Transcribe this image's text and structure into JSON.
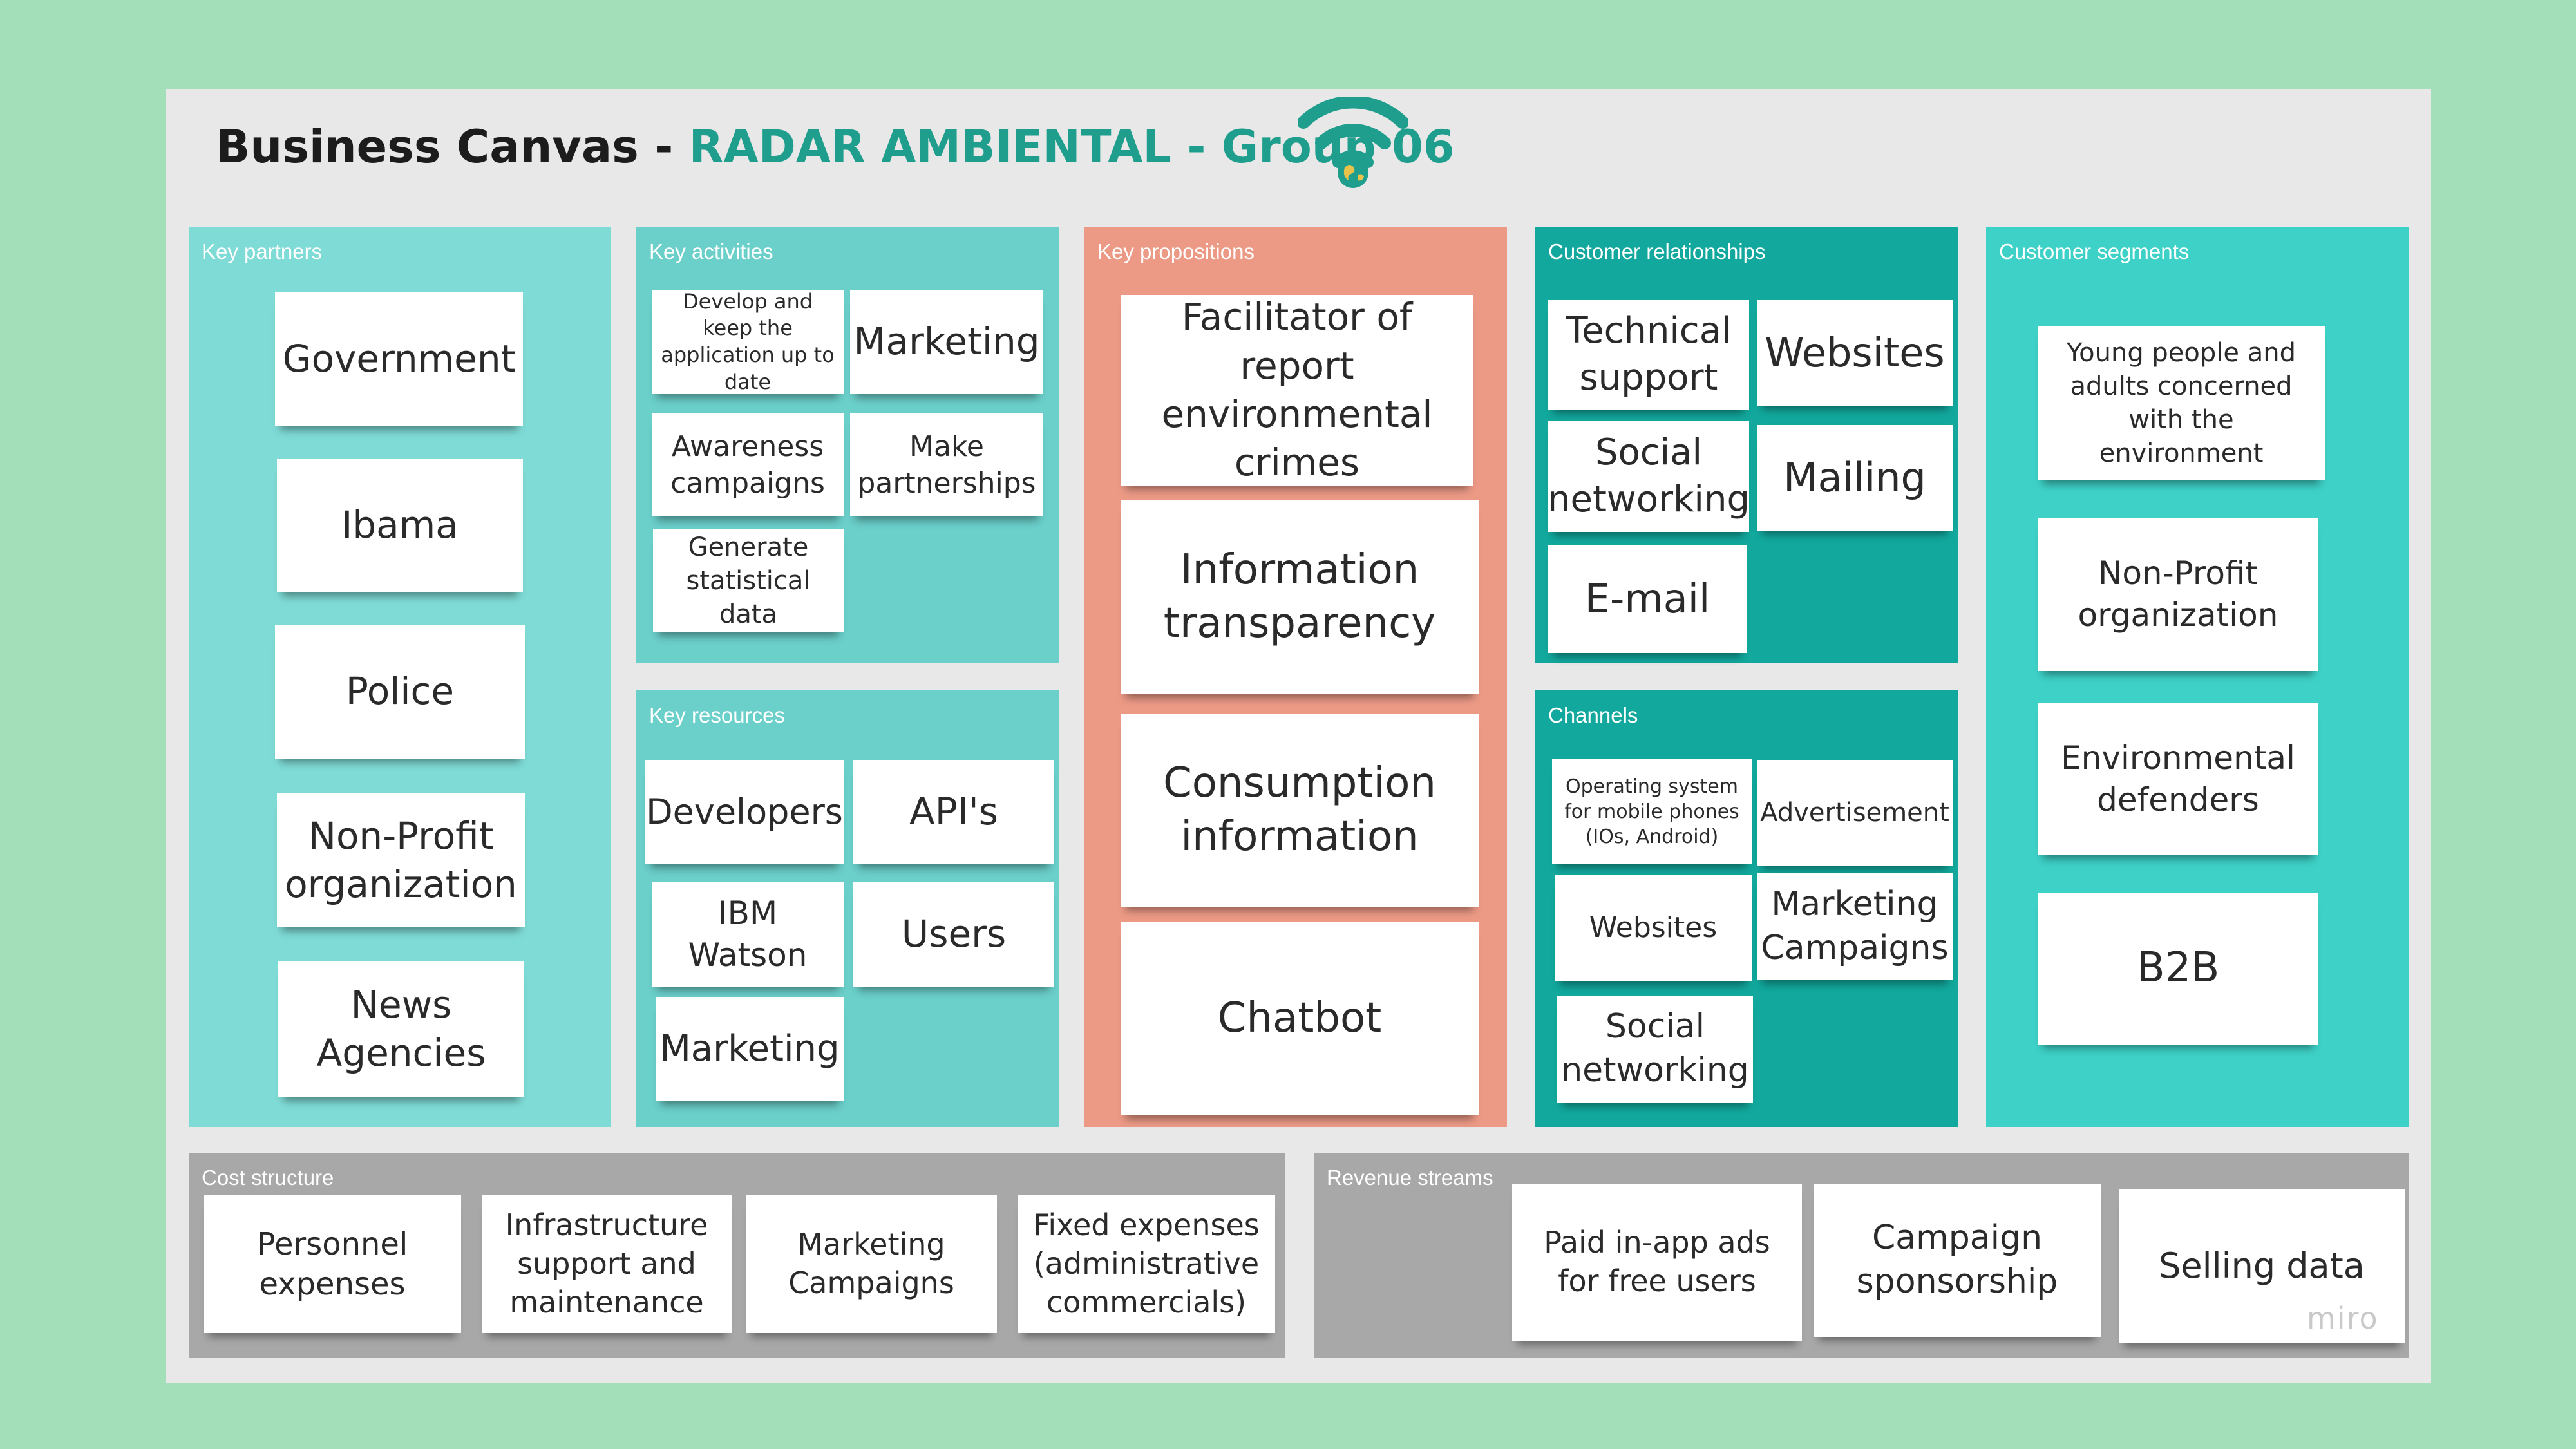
{
  "title": {
    "prefix": "Business Canvas - ",
    "accent": "RADAR AMBIENTAL - Group 06"
  },
  "logo_icon": "wifi-globe-icon",
  "colors": {
    "background": "#a3e0ba",
    "board": "#e8e8e8",
    "key_partners": "#7fdbd6",
    "key_activities": "#6bcfca",
    "key_resources": "#6bcfca",
    "key_propositions": "#ec9a86",
    "customer_relationships": "#12a89d",
    "channels": "#12a89d",
    "customer_segments": "#3ed1c7",
    "cost_structure": "#a8a8a8",
    "revenue_streams": "#a8a8a8",
    "title_accent": "#1f9e8d"
  },
  "panels": {
    "key_partners": {
      "label": "Key partners",
      "notes": [
        "Government",
        "Ibama",
        "Police",
        "Non-Profit organization",
        "News Agencies"
      ]
    },
    "key_activities": {
      "label": "Key activities",
      "notes": [
        "Develop and keep the application up to date",
        "Marketing",
        "Awareness campaigns",
        "Make partnerships",
        "Generate statistical data"
      ]
    },
    "key_resources": {
      "label": "Key resources",
      "notes": [
        "Developers",
        "API's",
        "IBM Watson",
        "Users",
        "Marketing"
      ]
    },
    "key_propositions": {
      "label": "Key propositions",
      "notes": [
        "Facilitator of report environmental crimes",
        "Information transparency",
        "Consumption information",
        "Chatbot"
      ]
    },
    "customer_relationships": {
      "label": "Customer relationships",
      "notes": [
        "Technical support",
        "Websites",
        "Social networking",
        "Mailing",
        "E-mail"
      ]
    },
    "channels": {
      "label": "Channels",
      "notes": [
        "Operating system for mobile phones (IOs, Android)",
        "Advertisement",
        "Websites",
        "Marketing Campaigns",
        "Social networking"
      ]
    },
    "customer_segments": {
      "label": "Customer segments",
      "notes": [
        "Young people and adults concerned with the environment",
        "Non-Profit organization",
        "Environmental defenders",
        "B2B"
      ]
    },
    "cost_structure": {
      "label": "Cost structure",
      "notes": [
        "Personnel expenses",
        "Infrastructure support and maintenance",
        "Marketing Campaigns",
        "Fixed expenses (administrative commercials)"
      ]
    },
    "revenue_streams": {
      "label": "Revenue streams",
      "notes": [
        "Paid in-app ads for free users",
        "Campaign sponsorship",
        "Selling data"
      ]
    }
  },
  "watermark": "miro"
}
